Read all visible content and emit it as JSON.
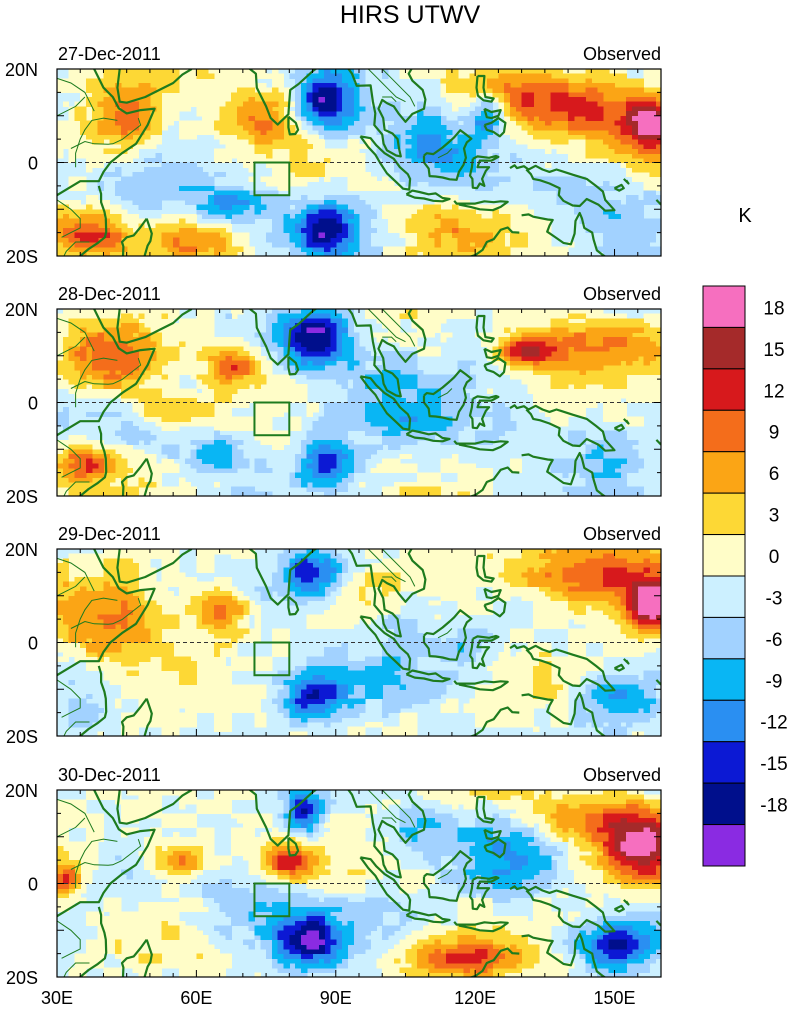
{
  "chart_data": {
    "type": "heatmap",
    "title": "HIRS UTWV",
    "colorbar": {
      "unit": "K",
      "levels": [
        18,
        15,
        12,
        9,
        6,
        3,
        0,
        -3,
        -6,
        -9,
        -12,
        -15,
        -18
      ],
      "colors": [
        "#f66fbf",
        "#a52a2a",
        "#d7191c",
        "#f46d1b",
        "#fba515",
        "#fdd835",
        "#fffdc8",
        "#ccf0ff",
        "#a2d2ff",
        "#09b6f4",
        "#2a8ff2",
        "#0c19d4",
        "#000f8c",
        "#8a2be2"
      ]
    },
    "axes": {
      "xlim": [
        30,
        160
      ],
      "ylim": [
        -20,
        20
      ],
      "x_ticks": [
        30,
        60,
        90,
        120,
        150
      ],
      "x_tick_labels": [
        "30E",
        "60E",
        "90E",
        "120E",
        "150E"
      ],
      "y_ticks": [
        20,
        0,
        -20
      ],
      "y_tick_labels": [
        "20N",
        "0",
        "20S"
      ]
    },
    "box_region": {
      "lon": [
        72.5,
        80
      ],
      "lat": [
        -7,
        0
      ]
    },
    "panels": [
      {
        "date_label": "27-Dec-2011",
        "type_label": "Observed",
        "blobs": [
          {
            "lon": 88,
            "lat": 13,
            "rlon": 6,
            "rlat": 6,
            "v": -17
          },
          {
            "lon": 88,
            "lat": -14,
            "rlon": 7,
            "rlat": 6,
            "v": -16
          },
          {
            "lon": 110,
            "lat": 5,
            "rlon": 12,
            "rlat": 10,
            "v": -8
          },
          {
            "lon": 123,
            "lat": 10,
            "rlon": 4,
            "rlat": 4,
            "v": -13
          },
          {
            "lon": 140,
            "lat": 12,
            "rlon": 20,
            "rlat": 7,
            "v": 13
          },
          {
            "lon": 158,
            "lat": 8,
            "rlon": 6,
            "rlat": 6,
            "v": 17
          },
          {
            "lon": 44,
            "lat": 9,
            "rlon": 8,
            "rlat": 7,
            "v": 10
          },
          {
            "lon": 74,
            "lat": 10,
            "rlon": 8,
            "rlat": 6,
            "v": 10
          },
          {
            "lon": 36,
            "lat": -15,
            "rlon": 8,
            "rlat": 5,
            "v": 13
          },
          {
            "lon": 50,
            "lat": -6,
            "rlon": 14,
            "rlat": 5,
            "v": -4
          },
          {
            "lon": 68,
            "lat": -9,
            "rlon": 8,
            "rlat": 4,
            "v": -9
          },
          {
            "lon": 148,
            "lat": -8,
            "rlon": 14,
            "rlat": 8,
            "v": -5
          },
          {
            "lon": 115,
            "lat": -14,
            "rlon": 10,
            "rlat": 6,
            "v": 6
          },
          {
            "lon": 60,
            "lat": -17,
            "rlon": 8,
            "rlat": 4,
            "v": 7
          }
        ]
      },
      {
        "date_label": "28-Dec-2011",
        "type_label": "Observed",
        "blobs": [
          {
            "lon": 86,
            "lat": 14,
            "rlon": 7,
            "rlat": 6,
            "v": -16
          },
          {
            "lon": 88,
            "lat": -13,
            "rlon": 6,
            "rlat": 5,
            "v": -14
          },
          {
            "lon": 103,
            "lat": 5,
            "rlon": 12,
            "rlat": 8,
            "v": -6
          },
          {
            "lon": 120,
            "lat": 12,
            "rlon": 8,
            "rlat": 5,
            "v": -5
          },
          {
            "lon": 146,
            "lat": 12,
            "rlon": 16,
            "rlat": 6,
            "v": 13
          },
          {
            "lon": 130,
            "lat": 11,
            "rlon": 6,
            "rlat": 3,
            "v": 12
          },
          {
            "lon": 42,
            "lat": 9,
            "rlon": 10,
            "rlat": 7,
            "v": 11
          },
          {
            "lon": 68,
            "lat": 8,
            "rlon": 6,
            "rlat": 5,
            "v": 12
          },
          {
            "lon": 36,
            "lat": -13,
            "rlon": 7,
            "rlat": 4,
            "v": 13
          },
          {
            "lon": 95,
            "lat": -4,
            "rlon": 30,
            "rlat": 5,
            "v": -4
          },
          {
            "lon": 65,
            "lat": -11,
            "rlon": 8,
            "rlat": 4,
            "v": -8
          },
          {
            "lon": 148,
            "lat": -10,
            "rlon": 12,
            "rlat": 7,
            "v": -7
          },
          {
            "lon": 55,
            "lat": -2,
            "rlon": 8,
            "rlat": 3,
            "v": 7
          }
        ]
      },
      {
        "date_label": "29-Dec-2011",
        "type_label": "Observed",
        "blobs": [
          {
            "lon": 85,
            "lat": 15,
            "rlon": 6,
            "rlat": 5,
            "v": -15
          },
          {
            "lon": 85,
            "lat": -12,
            "rlon": 6,
            "rlat": 5,
            "v": -12
          },
          {
            "lon": 105,
            "lat": 4,
            "rlon": 8,
            "rlat": 6,
            "v": -5
          },
          {
            "lon": 118,
            "lat": -1,
            "rlon": 8,
            "rlat": 4,
            "v": -5
          },
          {
            "lon": 145,
            "lat": 14,
            "rlon": 18,
            "rlat": 7,
            "v": 13
          },
          {
            "lon": 158,
            "lat": 8,
            "rlon": 5,
            "rlat": 5,
            "v": 19
          },
          {
            "lon": 65,
            "lat": 7,
            "rlon": 6,
            "rlat": 5,
            "v": 13
          },
          {
            "lon": 42,
            "lat": 4,
            "rlon": 12,
            "rlat": 10,
            "v": 9
          },
          {
            "lon": 150,
            "lat": -12,
            "rlon": 8,
            "rlat": 6,
            "v": -10
          },
          {
            "lon": 90,
            "lat": -8,
            "rlon": 22,
            "rlat": 6,
            "v": -4
          },
          {
            "lon": 36,
            "lat": -17,
            "rlon": 6,
            "rlat": 4,
            "v": -4
          }
        ]
      },
      {
        "date_label": "30-Dec-2011",
        "type_label": "Observed",
        "blobs": [
          {
            "lon": 83,
            "lat": 15,
            "rlon": 4,
            "rlat": 5,
            "v": -14
          },
          {
            "lon": 84,
            "lat": -12,
            "rlon": 7,
            "rlat": 6,
            "v": -16
          },
          {
            "lon": 108,
            "lat": 12,
            "rlon": 8,
            "rlat": 5,
            "v": -6
          },
          {
            "lon": 128,
            "lat": 6,
            "rlon": 10,
            "rlat": 8,
            "v": -8
          },
          {
            "lon": 156,
            "lat": 8,
            "rlon": 8,
            "rlat": 7,
            "v": 17
          },
          {
            "lon": 145,
            "lat": 14,
            "rlon": 14,
            "rlat": 6,
            "v": 9
          },
          {
            "lon": 80,
            "lat": 5,
            "rlon": 6,
            "rlat": 4,
            "v": 12
          },
          {
            "lon": 56,
            "lat": 5,
            "rlon": 6,
            "rlat": 4,
            "v": 12
          },
          {
            "lon": 32,
            "lat": 1,
            "rlon": 3,
            "rlat": 3,
            "v": 13
          },
          {
            "lon": 118,
            "lat": -16,
            "rlon": 12,
            "rlat": 4,
            "v": 12
          },
          {
            "lon": 150,
            "lat": -13,
            "rlon": 8,
            "rlat": 5,
            "v": -13
          },
          {
            "lon": 70,
            "lat": -6,
            "rlon": 10,
            "rlat": 8,
            "v": -5
          },
          {
            "lon": 100,
            "lat": -6,
            "rlon": 14,
            "rlat": 5,
            "v": -3
          }
        ]
      }
    ]
  }
}
